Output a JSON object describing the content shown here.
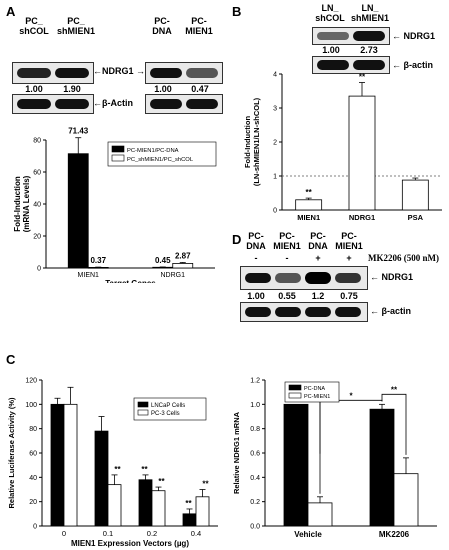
{
  "panel_a": {
    "label": "A",
    "blot_left": {
      "lane1": "PC_\nshCOL",
      "lane2": "PC_\nshMIEN1",
      "target": "NDRG1",
      "ratio1": "1.00",
      "ratio2": "1.90",
      "loading": "β-Actin"
    },
    "blot_right": {
      "lane1": "PC-\nDNA",
      "lane2": "PC-\nMIEN1",
      "ratio1": "1.00",
      "ratio2": "0.47"
    }
  },
  "panel_b": {
    "label": "B",
    "blot": {
      "lane1": "LN_\nshCOL",
      "lane2": "LN_\nshMIEN1",
      "target": "NDRG1",
      "ratio1": "1.00",
      "ratio2": "2.73",
      "loading": "β-actin"
    }
  },
  "panel_c": {
    "label": "C"
  },
  "panel_d": {
    "label": "D",
    "lanes": [
      "PC-\nDNA",
      "PC-\nMIEN1",
      "PC-\nDNA",
      "PC-\nMIEN1"
    ],
    "treatment_marks": [
      "-",
      "-",
      "+",
      "+"
    ],
    "treatment": "MK2206 (500 nM)",
    "ratios": [
      "1.00",
      "0.55",
      "1.2",
      "0.75"
    ],
    "target": "NDRG1",
    "loading": "β-actin"
  },
  "chart_data": [
    {
      "id": "a-bar",
      "type": "bar",
      "categories": [
        "MIEN1",
        "NDRG1"
      ],
      "series": [
        {
          "name": "PC-MIEN1/PC-DNA",
          "values": [
            71.43,
            0.45
          ],
          "color": "#000000"
        },
        {
          "name": "PC_shMIEN1/PC_shCOL",
          "values": [
            0.37,
            2.87
          ],
          "color": "#ffffff"
        }
      ],
      "errors": [
        [
          10,
          0.2
        ],
        [
          0.2,
          0.6
        ]
      ],
      "value_labels": [
        "71.43",
        "0.37",
        "0.45",
        "2.87"
      ],
      "ylabel": "Fold-Induction\n(mRNA Levels)",
      "xlabel": "Target Genes",
      "ylim": [
        0,
        80
      ],
      "yticks": [
        0,
        20,
        40,
        60,
        80
      ],
      "legend": "top-right"
    },
    {
      "id": "b-bar",
      "type": "bar",
      "categories": [
        "MIEN1",
        "NDRG1",
        "PSA"
      ],
      "values": [
        0.3,
        3.35,
        0.88
      ],
      "errors": [
        0.05,
        0.4,
        0.06
      ],
      "stars": [
        "**",
        "**",
        ""
      ],
      "ylabel": "Fold-Induction\n(LN-shMIEN1/LN-shCOL)",
      "ylim": [
        0,
        4
      ],
      "yticks": [
        0,
        1,
        2,
        3,
        4
      ],
      "reference_line": 1
    },
    {
      "id": "c-bar",
      "type": "bar",
      "categories": [
        "0",
        "0.1",
        "0.2",
        "0.4"
      ],
      "series": [
        {
          "name": "LNCaP Cells",
          "values": [
            100,
            78,
            38,
            10
          ],
          "color": "#000000"
        },
        {
          "name": "PC-3 Cells",
          "values": [
            100,
            34,
            29,
            24
          ],
          "color": "#ffffff"
        }
      ],
      "errors": [
        [
          5,
          12,
          4,
          4
        ],
        [
          14,
          8,
          3,
          6
        ]
      ],
      "stars": [
        [
          "",
          "",
          "**",
          "**"
        ],
        [
          "",
          "**",
          "**",
          "**"
        ]
      ],
      "ylabel": "Relative Luciferase Activity (%)",
      "xlabel": "MIEN1 Expression Vectors (µg)",
      "ylim": [
        0,
        120
      ],
      "yticks": [
        0,
        20,
        40,
        60,
        80,
        100,
        120
      ],
      "legend": "top-right"
    },
    {
      "id": "d-bar",
      "type": "bar",
      "categories": [
        "Vehicle",
        "MK2206"
      ],
      "series": [
        {
          "name": "PC-DNA",
          "values": [
            1.0,
            0.96
          ],
          "color": "#000000"
        },
        {
          "name": "PC-MIEN1",
          "values": [
            0.19,
            0.43
          ],
          "color": "#ffffff"
        }
      ],
      "errors": [
        [
          0.0,
          0.04
        ],
        [
          0.05,
          0.13
        ]
      ],
      "ylabel": "Relative NDRG1 mRNA",
      "ylim": [
        0,
        1.2
      ],
      "yticks": [
        0.0,
        0.2,
        0.4,
        0.6,
        0.8,
        1.0,
        1.2
      ],
      "brackets": [
        "**",
        "*",
        "**"
      ],
      "legend": "top-left"
    }
  ]
}
